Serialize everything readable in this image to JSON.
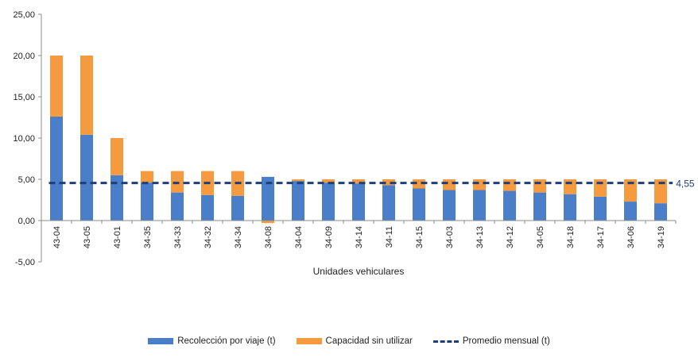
{
  "chart_data": {
    "type": "bar",
    "stacked": true,
    "categories": [
      "43-04",
      "43-05",
      "43-01",
      "34-35",
      "34-33",
      "34-32",
      "34-34",
      "34-08",
      "34-04",
      "34-09",
      "34-14",
      "34-11",
      "34-15",
      "34-03",
      "34-13",
      "34-12",
      "34-05",
      "34-18",
      "34-17",
      "34-06",
      "34-19"
    ],
    "series": [
      {
        "name": "Recolección por viaje (t)",
        "color": "#4a7ec9",
        "values": [
          12.6,
          10.4,
          5.5,
          4.6,
          3.4,
          3.1,
          3.0,
          5.3,
          4.8,
          4.6,
          4.5,
          4.3,
          3.9,
          3.7,
          3.7,
          3.6,
          3.4,
          3.2,
          2.9,
          2.3,
          2.1
        ]
      },
      {
        "name": "Capacidad sin utilizar",
        "color": "#f59a3f",
        "values": [
          7.4,
          9.6,
          4.5,
          1.4,
          2.6,
          2.9,
          3.0,
          -0.3,
          0.2,
          0.4,
          0.5,
          0.7,
          1.1,
          1.3,
          1.3,
          1.4,
          1.6,
          1.8,
          2.1,
          2.7,
          2.9
        ]
      }
    ],
    "average": {
      "name": "Promedio mensual (t)",
      "value": 4.55,
      "label": "4,55",
      "color": "#1f3f7a"
    },
    "xlabel": "Unidades vehiculares",
    "ylabel": "",
    "ylim": [
      -5,
      25
    ],
    "yticks": [
      "-5,00",
      "0,00",
      "5,00",
      "10,00",
      "15,00",
      "20,00",
      "25,00"
    ],
    "grid": false,
    "legend_position": "bottom"
  },
  "legend": {
    "item1": "Recolección por viaje (t)",
    "item2": "Capacidad sin utilizar",
    "item3": "Promedio mensual (t)"
  }
}
